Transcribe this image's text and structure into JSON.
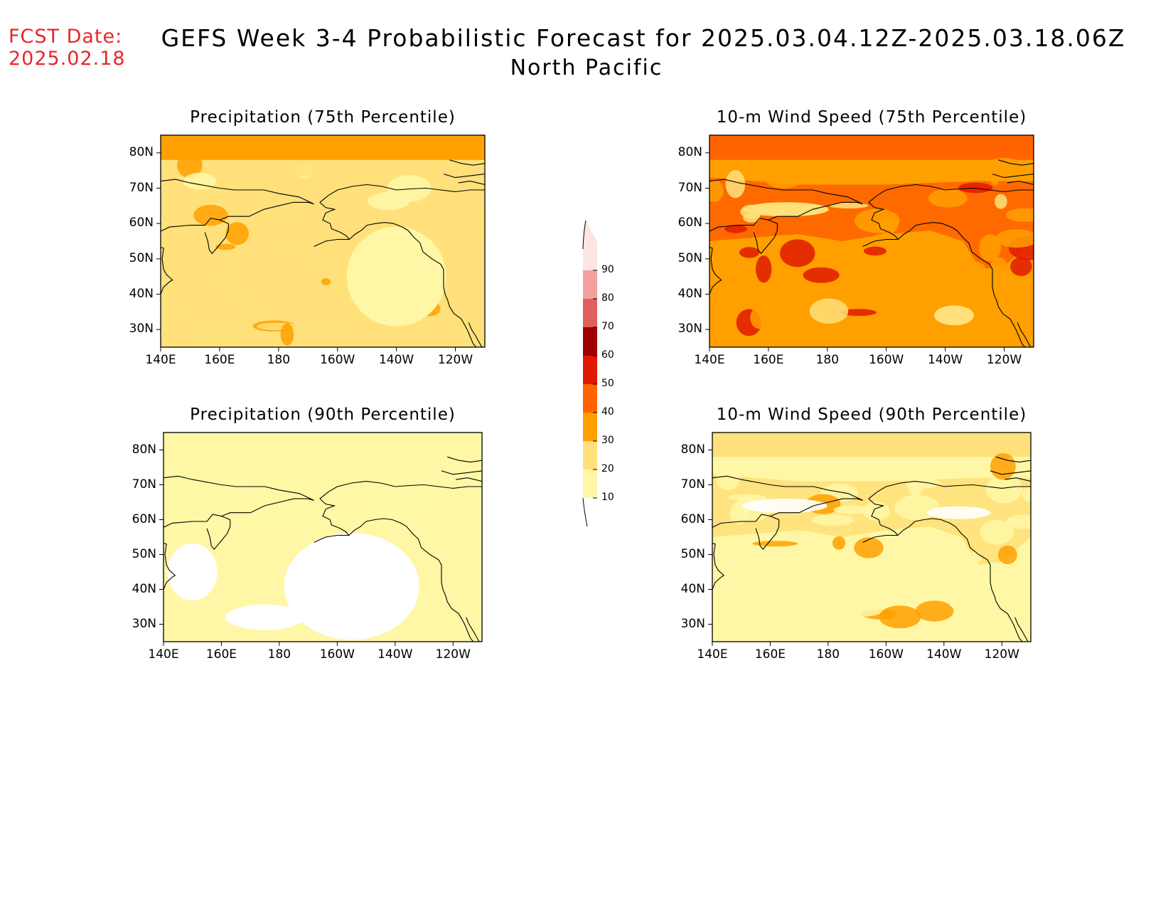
{
  "header": {
    "fcst_date_label": "FCST Date:",
    "fcst_date_value": "2025.02.18",
    "title": "GEFS Week 3-4 Probabilistic Forecast for 2025.03.04.12Z-2025.03.18.06Z",
    "region": "North Pacific"
  },
  "colors": {
    "levels": [
      "#fff7a6",
      "#ffe07a",
      "#ffa000",
      "#ff6400",
      "#e01a00",
      "#a00000",
      "#e06060",
      "#f4a0a0",
      "#ffe4e4"
    ],
    "coast": "#000000",
    "fcst_text": "#e8262a"
  },
  "colorbar": {
    "ticks": [
      "10",
      "20",
      "30",
      "40",
      "50",
      "60",
      "70",
      "80",
      "90"
    ]
  },
  "axes": {
    "lat_ticks": [
      "80N",
      "70N",
      "60N",
      "50N",
      "40N",
      "30N"
    ],
    "lon_ticks": [
      "140E",
      "160E",
      "180",
      "160W",
      "140W",
      "120W"
    ]
  },
  "panels": [
    {
      "title": "Precipitation (75th Percentile)",
      "base_level": 1,
      "high_level": 2,
      "top_band_level": 2,
      "land_level": 1
    },
    {
      "title": "10-m Wind Speed (75th Percentile)",
      "base_level": 2,
      "high_level": 4,
      "top_band_level": 3,
      "land_level": 3
    },
    {
      "title": "Precipitation (90th Percentile)",
      "base_level": 0,
      "high_level": 0,
      "top_band_level": 0,
      "land_level": 0
    },
    {
      "title": "10-m Wind Speed (90th Percentile)",
      "base_level": 0,
      "high_level": 2,
      "top_band_level": 1,
      "land_level": 1
    }
  ]
}
